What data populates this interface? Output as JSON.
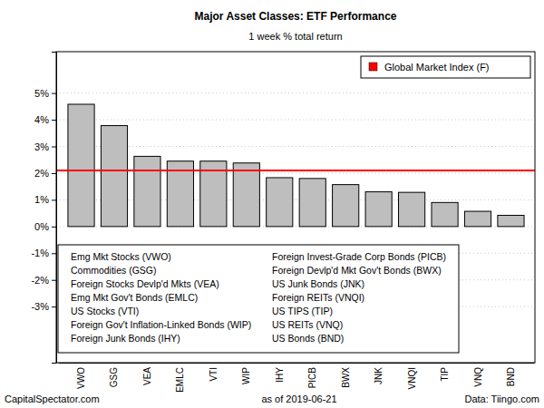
{
  "chart_data": {
    "type": "bar",
    "title": "Major Asset Classes: ETF Performance",
    "subtitle": "1 week % total return",
    "categories": [
      "VWO",
      "GSG",
      "VEA",
      "EMLC",
      "VTI",
      "WIP",
      "IHY",
      "PICB",
      "BWX",
      "JNK",
      "VNQI",
      "TIP",
      "VNQ",
      "BND"
    ],
    "values": [
      4.58,
      3.78,
      2.63,
      2.45,
      2.45,
      2.38,
      1.83,
      1.8,
      1.57,
      1.3,
      1.28,
      0.9,
      0.57,
      0.42
    ],
    "color": "#bebebe",
    "ylim": [
      -5.1,
      6.55
    ],
    "yticks": [
      {
        "value": -3,
        "label": "-3%"
      },
      {
        "value": -2,
        "label": "-2%"
      },
      {
        "value": -1,
        "label": "-1%"
      },
      {
        "value": 0,
        "label": "0%"
      },
      {
        "value": 1,
        "label": "1%"
      },
      {
        "value": 2,
        "label": "2%"
      },
      {
        "value": 3,
        "label": "3%"
      },
      {
        "value": 4,
        "label": "4%"
      },
      {
        "value": 5,
        "label": "5%"
      }
    ],
    "grid": true,
    "legend": "topright",
    "reference_lines": [
      {
        "name": "Global Market Index (F)",
        "value": 2.1,
        "color": "#ff0000"
      }
    ],
    "annotations": [
      "Emg Mkt Stocks (VWO)",
      "Commodities (GSG)",
      "Foreign Stocks Devlp'd Mkts (VEA)",
      "Emg Mkt Gov't Bonds (EMLC)",
      "US Stocks (VTI)",
      "Foreign Gov't Inflation-Linked Bonds (WIP)",
      "Foreign Junk Bonds (IHY)",
      "Foreign Invest-Grade Corp Bonds (PICB)",
      "Foreign Devlp'd Mkt Gov't Bonds (BWX)",
      "US Junk Bonds (JNK)",
      "Foreign REITs (VNQI)",
      "US TIPS (TIP)",
      "US REITs (VNQ)",
      "US Bonds (BND)"
    ],
    "caption": [
      "CapitalSpectator.com",
      "as of 2019-06-21",
      "Data: Tiingo.com"
    ]
  }
}
